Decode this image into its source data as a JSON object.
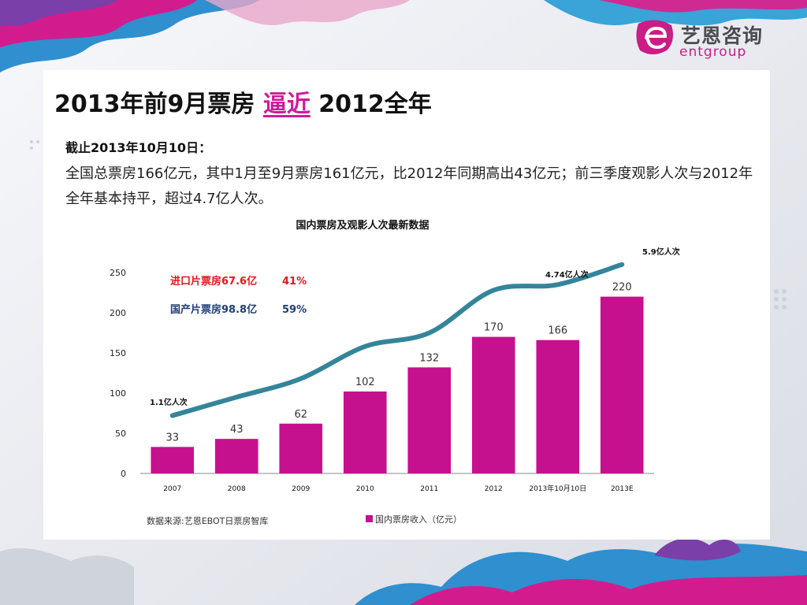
{
  "logo": {
    "chinese": "艺恩咨询",
    "english": "entgroup"
  },
  "slide": {
    "title_before": "2013年前9月票房 ",
    "title_highlight": "逼近",
    "title_after": " 2012全年",
    "subheading": "截止2013年10月10日：",
    "paragraph": "全国总票房166亿元，其中1月至9月票房161亿元，比2012年同期高出43亿元；前三季度观影人次与2012年全年基本持平，超过4.7亿人次。"
  },
  "colors": {
    "bar": "#c6118f",
    "line": "#34859a",
    "highlight": "#cc1c9a",
    "imported": "#e8151b",
    "domestic": "#1f3e7a"
  },
  "chart_data": {
    "type": "bar",
    "title": "国内票房及观影人次最新数据",
    "categories": [
      "2007",
      "2008",
      "2009",
      "2010",
      "2011",
      "2012",
      "2013年10月10日",
      "2013E"
    ],
    "values": [
      33,
      43,
      62,
      102,
      132,
      170,
      166,
      220
    ],
    "ylim": [
      0,
      250
    ],
    "yticks": [
      0,
      50,
      100,
      150,
      200,
      250
    ],
    "series_name": "国内票房收入（亿元）",
    "attendance_line": {
      "name": "观影人次",
      "values": [
        72,
        95,
        118,
        158,
        175,
        228,
        235,
        260
      ]
    },
    "line_labels": [
      "1.1亿人次",
      "4.74亿人次",
      "5.9亿人次"
    ],
    "split": [
      {
        "label": "进口片票房67.6亿",
        "percent": "41%"
      },
      {
        "label": "国产片票房98.8亿",
        "percent": "59%"
      }
    ],
    "source": "数据来源:艺恩EBOT日票房智库"
  }
}
